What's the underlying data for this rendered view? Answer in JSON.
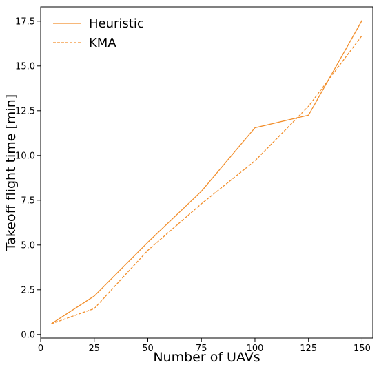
{
  "chart_data": {
    "type": "line",
    "title": "",
    "xlabel": "Number of UAVs",
    "ylabel": "Takeoff flight time [min]",
    "x": [
      5,
      25,
      50,
      75,
      100,
      125,
      150
    ],
    "xlim": [
      0,
      155
    ],
    "ylim": [
      -0.2,
      18.3
    ],
    "xticks": [
      0,
      25,
      50,
      75,
      100,
      125,
      150
    ],
    "yticks": [
      0.0,
      2.5,
      5.0,
      7.5,
      10.0,
      12.5,
      15.0,
      17.5
    ],
    "xtick_labels": [
      "0",
      "25",
      "50",
      "75",
      "100",
      "125",
      "150"
    ],
    "ytick_labels": [
      "0.0",
      "2.5",
      "5.0",
      "7.5",
      "10.0",
      "12.5",
      "15.0",
      "17.5"
    ],
    "grid": false,
    "legend_position": "top-left",
    "series": [
      {
        "name": "Heuristic",
        "values": [
          0.6,
          2.15,
          5.15,
          8.0,
          11.55,
          12.25,
          17.55
        ],
        "color": "#f28e2b",
        "style": "solid"
      },
      {
        "name": "KMA",
        "values": [
          0.6,
          1.45,
          4.7,
          7.3,
          9.7,
          12.75,
          16.7
        ],
        "color": "#f28e2b",
        "style": "dashed"
      }
    ]
  }
}
